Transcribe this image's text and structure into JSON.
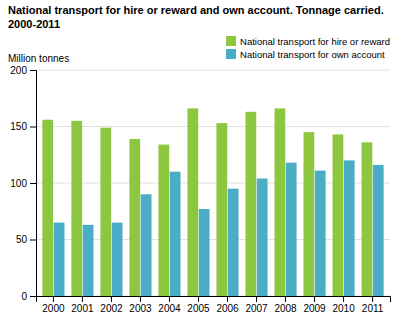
{
  "chart_data": {
    "type": "bar",
    "title": "National transport for hire or reward and own account. Tonnage carried.",
    "subtitle": "2000-2011",
    "ylabel": "Million tonnes",
    "categories": [
      "2000",
      "2001",
      "2002",
      "2003",
      "2004",
      "2005",
      "2006",
      "2007",
      "2008",
      "2009",
      "2010",
      "2011"
    ],
    "series": [
      {
        "name": "National transport for hire or reward",
        "color": "#8dc63f",
        "values": [
          156,
          155,
          149,
          139,
          134,
          166,
          153,
          163,
          166,
          145,
          143,
          136
        ]
      },
      {
        "name": "National transport for own account",
        "color": "#4bacc6",
        "values": [
          65,
          63,
          65,
          90,
          110,
          77,
          95,
          104,
          118,
          111,
          120,
          116
        ]
      }
    ],
    "ylim": [
      0,
      200
    ],
    "yticks": [
      0,
      50,
      100,
      150,
      200
    ],
    "grid": true,
    "legend": "upper right"
  }
}
